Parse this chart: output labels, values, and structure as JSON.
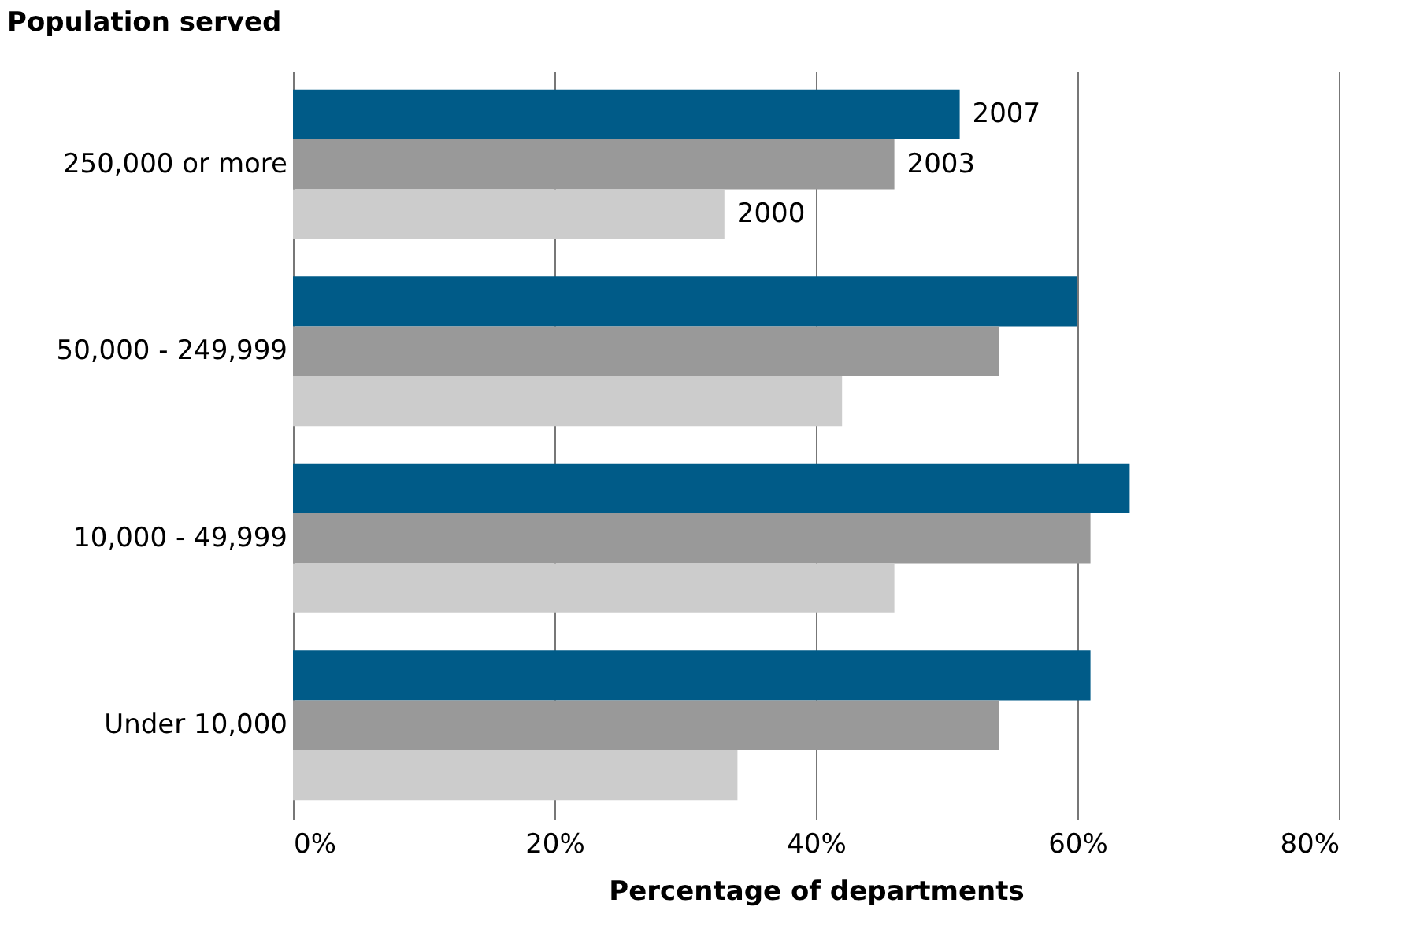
{
  "chart_data": {
    "type": "bar",
    "orientation": "horizontal",
    "ylabel": "Population served",
    "xlabel": "Percentage of departments",
    "categories": [
      "250,000 or more",
      "50,000 - 249,999",
      "10,000 - 49,999",
      "Under 10,000"
    ],
    "series": [
      {
        "name": "2007",
        "color": "#005b88",
        "values": [
          51,
          60,
          64,
          61
        ]
      },
      {
        "name": "2003",
        "color": "#999999",
        "values": [
          46,
          54,
          61,
          54
        ]
      },
      {
        "name": "2000",
        "color": "#cccccc",
        "values": [
          33,
          42,
          46,
          34
        ]
      }
    ],
    "xlim": [
      0,
      80
    ],
    "xticks": [
      {
        "value": 0,
        "label": "0%"
      },
      {
        "value": 20,
        "label": "20%"
      },
      {
        "value": 40,
        "label": "40%"
      },
      {
        "value": 60,
        "label": "60%"
      },
      {
        "value": 80,
        "label": "80%"
      }
    ],
    "grid": "x"
  }
}
